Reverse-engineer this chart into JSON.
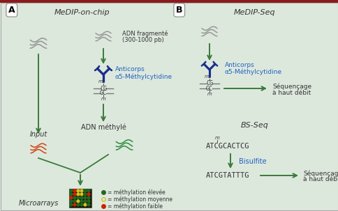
{
  "bg_color": "#dde8dd",
  "border_top_color": "#8b1a1a",
  "title_A": "MeDIP-on-chip",
  "title_B": "MeDIP-Seq",
  "title_BS": "BS-Seq",
  "antibody_label_1": "Anticorps",
  "antibody_label_2": "α5-Méthylcytidine",
  "adn_fragmente_1": "ADN fragmenté",
  "adn_fragmente_2": "(300-1000 pb)",
  "adn_methyle": "ADN méthylé",
  "input_label": "Input",
  "microarrays_label": "Microarrays",
  "sequencage_1": "Séquençage",
  "sequencage_2": "à haut débit",
  "bisulfite": "Bisulfite",
  "legend_high": "= méthylation élevée",
  "legend_med": "= méthylation moyenne",
  "legend_low": "= méthylation faible",
  "dna_seq_top": "ATCGCACTCG",
  "dna_seq_bot": "ATCGTATTTG",
  "green_arrow": "#3a7a3a",
  "antibody_blue": "#1a2e8a",
  "text_blue": "#2060c0",
  "text_dark": "#333333",
  "text_gray": "#555555",
  "yellow_dot": "#d4c020",
  "red_dot": "#cc2200",
  "green_dot": "#226622",
  "dna_gray": "#909090",
  "dna_red": "#cc3300",
  "dna_green": "#228833"
}
